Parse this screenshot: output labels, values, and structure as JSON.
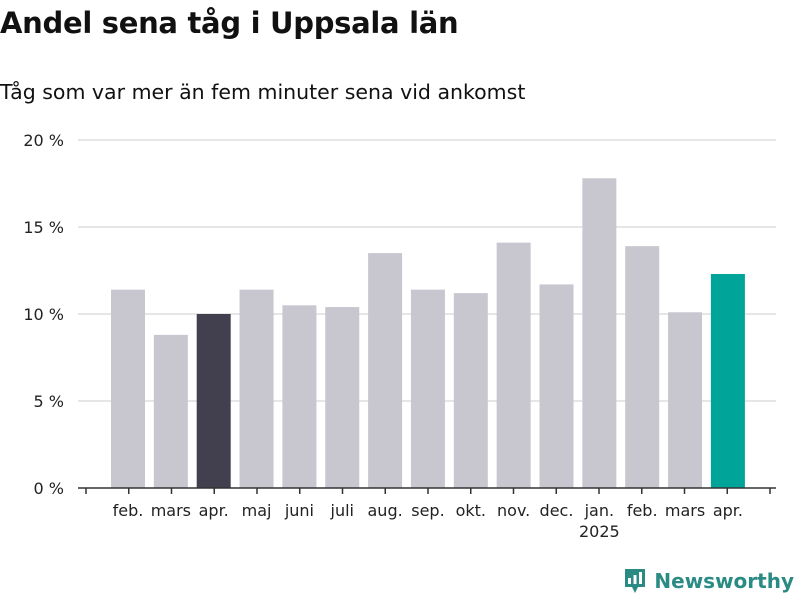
{
  "title": "Andel sena tåg i Uppsala län",
  "subtitle": "Tåg som var mer än fem minuter sena vid ankomst",
  "brand": "Newsworthy",
  "colors": {
    "bar_default": "#c8c7d0",
    "bar_previous_year": "#42404f",
    "bar_current": "#00a499",
    "grid": "#dddddd",
    "axis": "#333333",
    "brand": "#2a8a84"
  },
  "chart_data": {
    "type": "bar",
    "title": "Andel sena tåg i Uppsala län",
    "subtitle": "Tåg som var mer än fem minuter sena vid ankomst",
    "categories": [
      "feb.",
      "mars",
      "apr.",
      "maj",
      "juni",
      "juli",
      "aug.",
      "sep.",
      "okt.",
      "nov.",
      "dec.",
      "jan.",
      "feb.",
      "mars",
      "apr."
    ],
    "year_labels": [
      {
        "category_index": 11,
        "label": "2025"
      }
    ],
    "values": [
      11.4,
      8.8,
      10.0,
      11.4,
      10.5,
      10.4,
      13.5,
      11.4,
      11.2,
      14.1,
      11.7,
      17.8,
      13.9,
      10.1,
      12.3
    ],
    "highlight": {
      "previous_year_index": 2,
      "current_index": 14
    },
    "ylim": [
      0,
      20
    ],
    "yticks": [
      0,
      5,
      10,
      15,
      20
    ],
    "ytick_labels": [
      "0 %",
      "5 %",
      "10 %",
      "15 %",
      "20 %"
    ],
    "grid": true,
    "xlabel": "",
    "ylabel": ""
  }
}
